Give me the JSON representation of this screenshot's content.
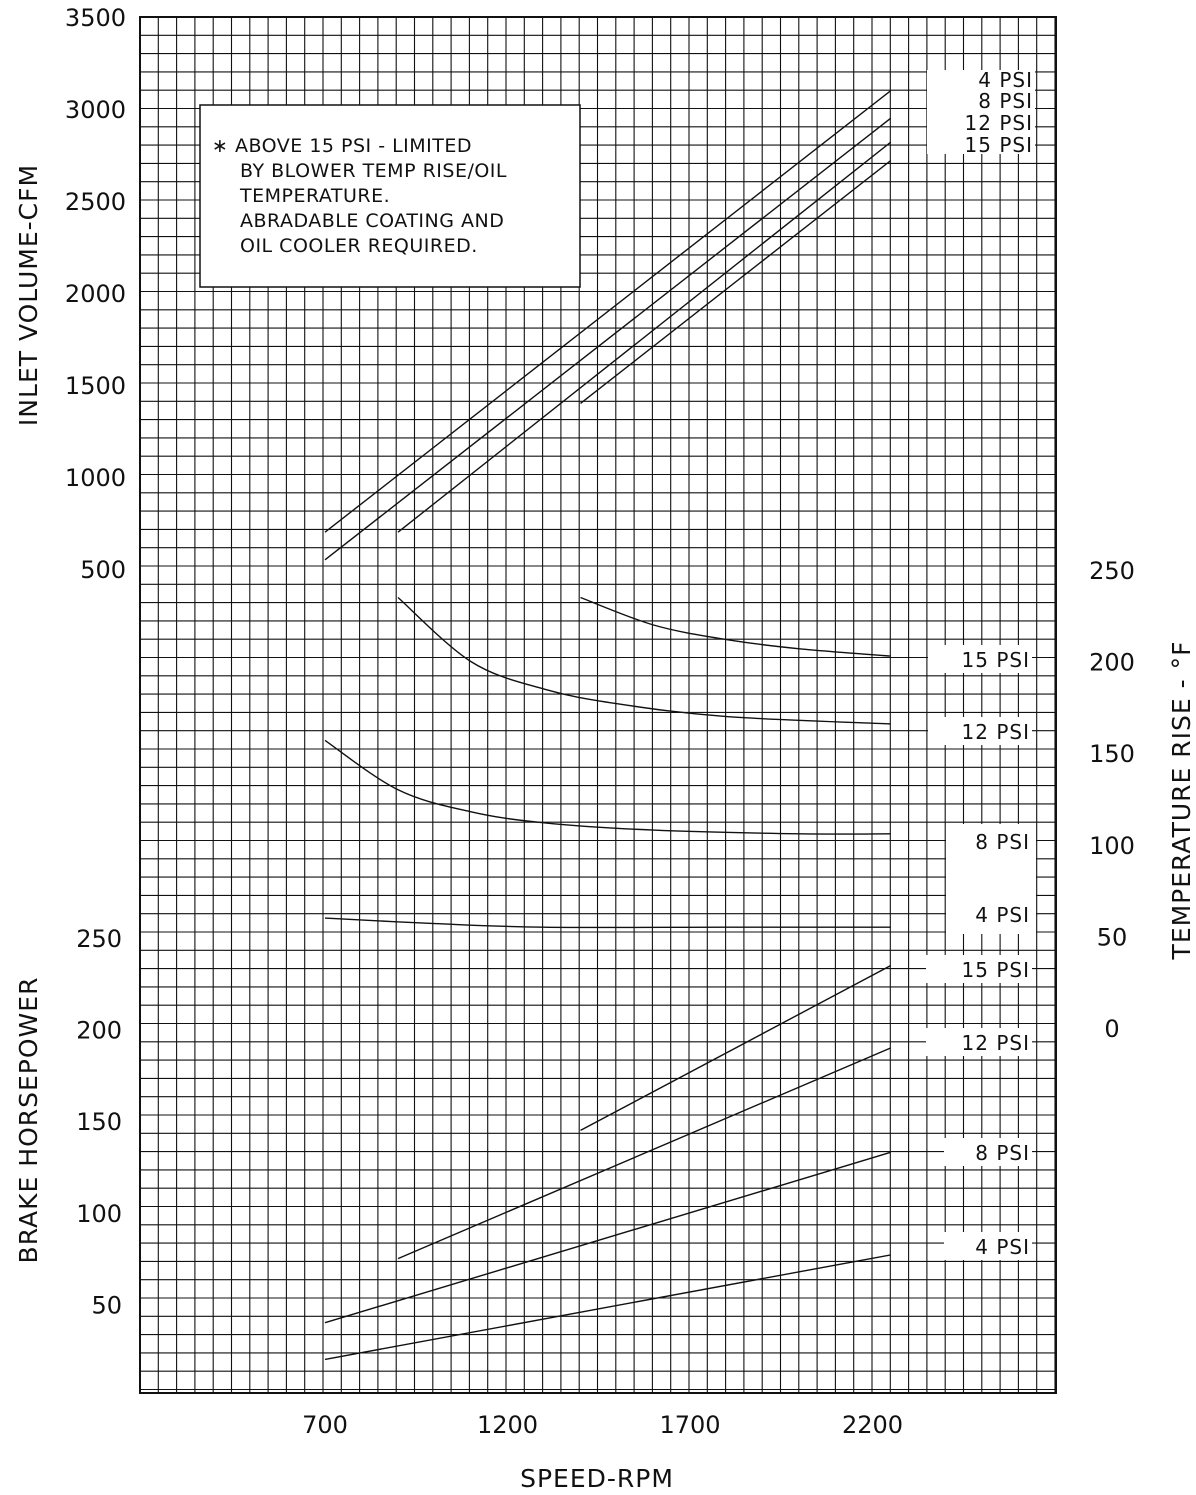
{
  "chart_data": [
    {
      "type": "line",
      "panel": "inlet_volume",
      "ylabel": "INLET VOLUME-CFM",
      "y_ticks": [
        "500",
        "1000",
        "1500",
        "2000",
        "2500",
        "3000",
        "3500"
      ],
      "ylim": [
        500,
        3500
      ],
      "x": [
        700,
        2250
      ],
      "series": [
        {
          "name": "4 PSI",
          "x": [
            700,
            2250
          ],
          "values": [
            700,
            3100
          ]
        },
        {
          "name": "8 PSI",
          "x": [
            700,
            2250
          ],
          "values": [
            550,
            2950
          ]
        },
        {
          "name": "12 PSI",
          "x": [
            900,
            2250
          ],
          "values": [
            700,
            2820
          ]
        },
        {
          "name": "15 PSI",
          "x": [
            1400,
            2250
          ],
          "values": [
            1400,
            2720
          ]
        }
      ],
      "note_lines": [
        "∗ ABOVE 15 PSI - LIMITED",
        "BY BLOWER TEMP RISE/OIL",
        "TEMPERATURE.",
        "ABRADABLE COATING AND",
        "OIL COOLER REQUIRED."
      ]
    },
    {
      "type": "line",
      "panel": "temperature_rise",
      "ylabel": "TEMPERATURE RISE - °F",
      "y_ticks": [
        "0",
        "50",
        "100",
        "150",
        "200",
        "250"
      ],
      "ylim": [
        0,
        250
      ],
      "series": [
        {
          "name": "15 PSI",
          "x": [
            1400,
            1600,
            1800,
            2000,
            2250
          ],
          "values": [
            235,
            220,
            212,
            207,
            203
          ]
        },
        {
          "name": "12 PSI",
          "x": [
            900,
            1100,
            1300,
            1500,
            1800,
            2250
          ],
          "values": [
            235,
            200,
            185,
            177,
            170,
            166
          ]
        },
        {
          "name": "8 PSI",
          "x": [
            700,
            900,
            1100,
            1300,
            1600,
            2000,
            2250
          ],
          "values": [
            157,
            130,
            118,
            112,
            108,
            106,
            106
          ]
        },
        {
          "name": "4 PSI",
          "x": [
            700,
            1000,
            1300,
            1800,
            2250
          ],
          "values": [
            60,
            57,
            55,
            55,
            55
          ]
        }
      ]
    },
    {
      "type": "line",
      "panel": "brake_horsepower",
      "xlabel": "SPEED-RPM",
      "ylabel": "BRAKE HORSEPOWER",
      "x_ticks": [
        "700",
        "1200",
        "1700",
        "2200"
      ],
      "y_ticks": [
        "50",
        "100",
        "150",
        "200",
        "250"
      ],
      "ylim": [
        0,
        250
      ],
      "series": [
        {
          "name": "15 PSI",
          "x": [
            1400,
            2250
          ],
          "values": [
            145,
            235
          ]
        },
        {
          "name": "12 PSI",
          "x": [
            900,
            2250
          ],
          "values": [
            75,
            190
          ]
        },
        {
          "name": "8 PSI",
          "x": [
            700,
            2250
          ],
          "values": [
            40,
            133
          ]
        },
        {
          "name": "4 PSI",
          "x": [
            700,
            2250
          ],
          "values": [
            20,
            77
          ]
        }
      ]
    }
  ]
}
